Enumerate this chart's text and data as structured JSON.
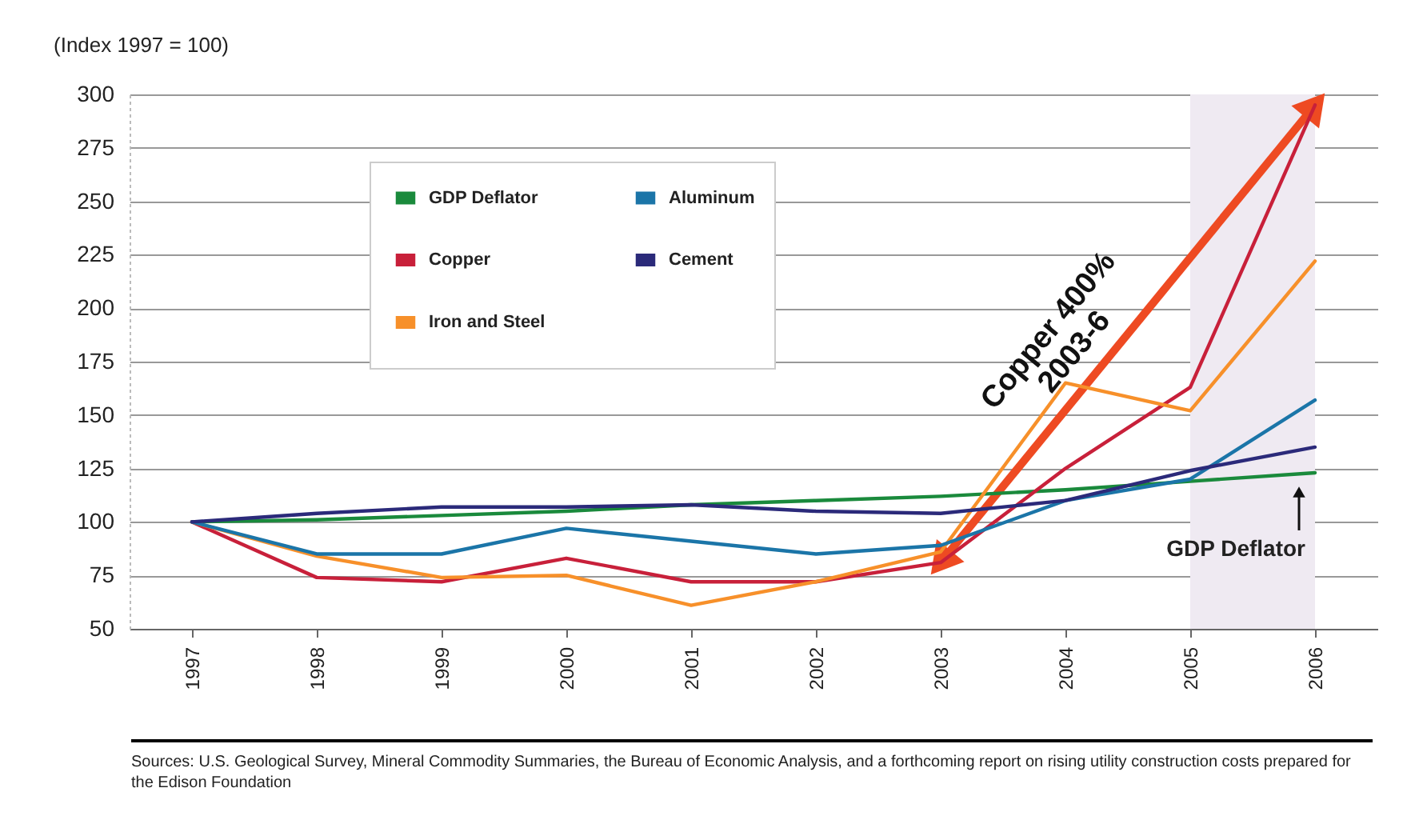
{
  "chart_data": {
    "type": "line",
    "ylabel": "(Index 1997 = 100)",
    "categories": [
      "1997",
      "1998",
      "1999",
      "2000",
      "2001",
      "2002",
      "2003",
      "2004",
      "2005",
      "2006"
    ],
    "series": [
      {
        "name": "GDP Deflator",
        "color": "#1a8a3c",
        "values": [
          100,
          101,
          103,
          105,
          108,
          110,
          112,
          115,
          119,
          123
        ]
      },
      {
        "name": "Copper",
        "color": "#c8203a",
        "values": [
          100,
          74,
          72,
          83,
          72,
          72,
          81,
          125,
          163,
          295
        ]
      },
      {
        "name": "Iron and Steel",
        "color": "#f7902a",
        "values": [
          100,
          84,
          74,
          75,
          61,
          72,
          86,
          165,
          152,
          222
        ]
      },
      {
        "name": "Aluminum",
        "color": "#1b75a8",
        "values": [
          100,
          85,
          85,
          97,
          91,
          85,
          89,
          110,
          120,
          157
        ]
      },
      {
        "name": "Cement",
        "color": "#2b2a7a",
        "values": [
          100,
          104,
          107,
          107,
          108,
          105,
          104,
          110,
          124,
          135
        ]
      }
    ],
    "ylim": [
      50,
      300
    ],
    "yticks": [
      50,
      75,
      100,
      125,
      150,
      175,
      200,
      225,
      250,
      275,
      300
    ],
    "grid": "y",
    "legend": "top left",
    "bands": [
      {
        "axis": "x",
        "from": "2005",
        "to": "2006",
        "color": "#efeaf2"
      }
    ],
    "annotations": [
      "Copper 400%\n2003-6",
      {
        "text": "GDP Deflator",
        "x": "2006",
        "y": 123
      },
      "Sources: U.S. Geological Survey, Mineral Commodity Summaries, the Bureau of Economic Analysis, and a forthcoming report on rising utility construction costs prepared for the Edison Foundation"
    ]
  }
}
